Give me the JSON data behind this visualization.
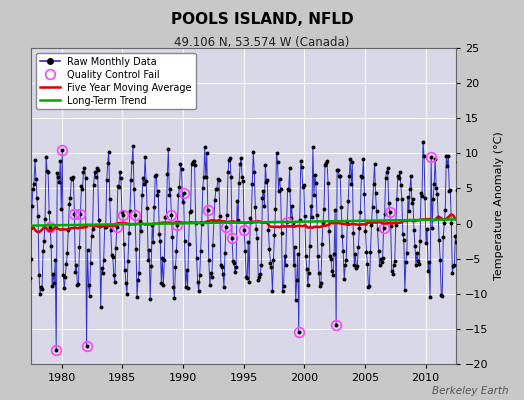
{
  "title": "POOLS ISLAND, NFLD",
  "subtitle": "49.106 N, 53.574 W (Canada)",
  "ylabel": "Temperature Anomaly (°C)",
  "watermark": "Berkeley Earth",
  "xlim": [
    1977.5,
    2012.5
  ],
  "ylim": [
    -20,
    25
  ],
  "yticks": [
    -20,
    -15,
    -10,
    -5,
    0,
    5,
    10,
    15,
    20,
    25
  ],
  "xticks": [
    1980,
    1985,
    1990,
    1995,
    2000,
    2005,
    2010
  ],
  "fig_bg": "#c8c8c8",
  "plot_bg": "#d8d8e8",
  "raw_color": "#3333cc",
  "raw_marker_color": "#000000",
  "qc_color": "#ff44ff",
  "moving_avg_color": "#dd0000",
  "trend_color": "#00aa00",
  "start_year": 1977,
  "end_year": 2012
}
